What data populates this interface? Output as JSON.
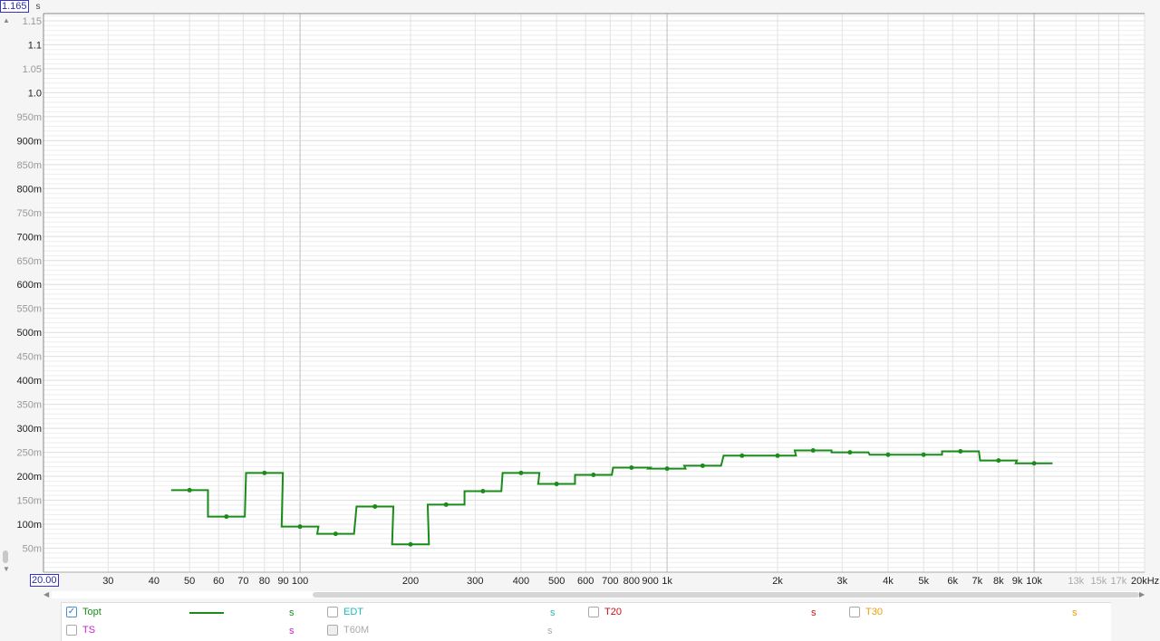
{
  "chart_data": {
    "type": "line",
    "title": "",
    "xlabel": "",
    "ylabel": "s",
    "x_scale": "log",
    "xlim": [
      20,
      20000
    ],
    "ylim": [
      0,
      1.165
    ],
    "grid": true,
    "x_ticks": [
      "30",
      "40",
      "50",
      "60",
      "70",
      "80",
      "90",
      "100",
      "200",
      "300",
      "400",
      "500",
      "600",
      "700",
      "800",
      "900",
      "1k",
      "2k",
      "3k",
      "4k",
      "5k",
      "6k",
      "7k",
      "8k",
      "9k",
      "10k",
      "13k",
      "15k",
      "17k",
      "20kHz"
    ],
    "y_ticks": [
      "1.15",
      "1.1",
      "1.05",
      "1.0",
      "950m",
      "900m",
      "850m",
      "800m",
      "750m",
      "700m",
      "650m",
      "600m",
      "550m",
      "500m",
      "450m",
      "400m",
      "350m",
      "300m",
      "250m",
      "200m",
      "150m",
      "100m",
      "50m"
    ],
    "x_min_input": "20.00",
    "y_max_input": "1.165",
    "series": [
      {
        "name": "Topt",
        "color": "#1a8c1a",
        "style": "step",
        "x": [
          50,
          63,
          80,
          100,
          125,
          160,
          200,
          250,
          315,
          400,
          500,
          630,
          800,
          1000,
          1250,
          1600,
          2000,
          2500,
          3150,
          4000,
          5000,
          6300,
          8000,
          10000
        ],
        "y": [
          0.171,
          0.116,
          0.207,
          0.095,
          0.08,
          0.137,
          0.058,
          0.141,
          0.169,
          0.207,
          0.184,
          0.203,
          0.218,
          0.216,
          0.222,
          0.243,
          0.243,
          0.254,
          0.25,
          0.245,
          0.245,
          0.252,
          0.233,
          0.227
        ]
      }
    ]
  },
  "legend": {
    "items": [
      {
        "label": "Topt",
        "unit": "s",
        "color": "#1a8c1a",
        "checked": true
      },
      {
        "label": "EDT",
        "unit": "s",
        "color": "#20b8b8",
        "checked": false
      },
      {
        "label": "T20",
        "unit": "s",
        "color": "#cc1111",
        "checked": false
      },
      {
        "label": "T30",
        "unit": "s",
        "color": "#e8a000",
        "checked": false
      },
      {
        "label": "TS",
        "unit": "s",
        "color": "#cc22cc",
        "checked": false
      },
      {
        "label": "T60M",
        "unit": "s",
        "color": "#aaaaaa",
        "checked": false
      }
    ]
  }
}
